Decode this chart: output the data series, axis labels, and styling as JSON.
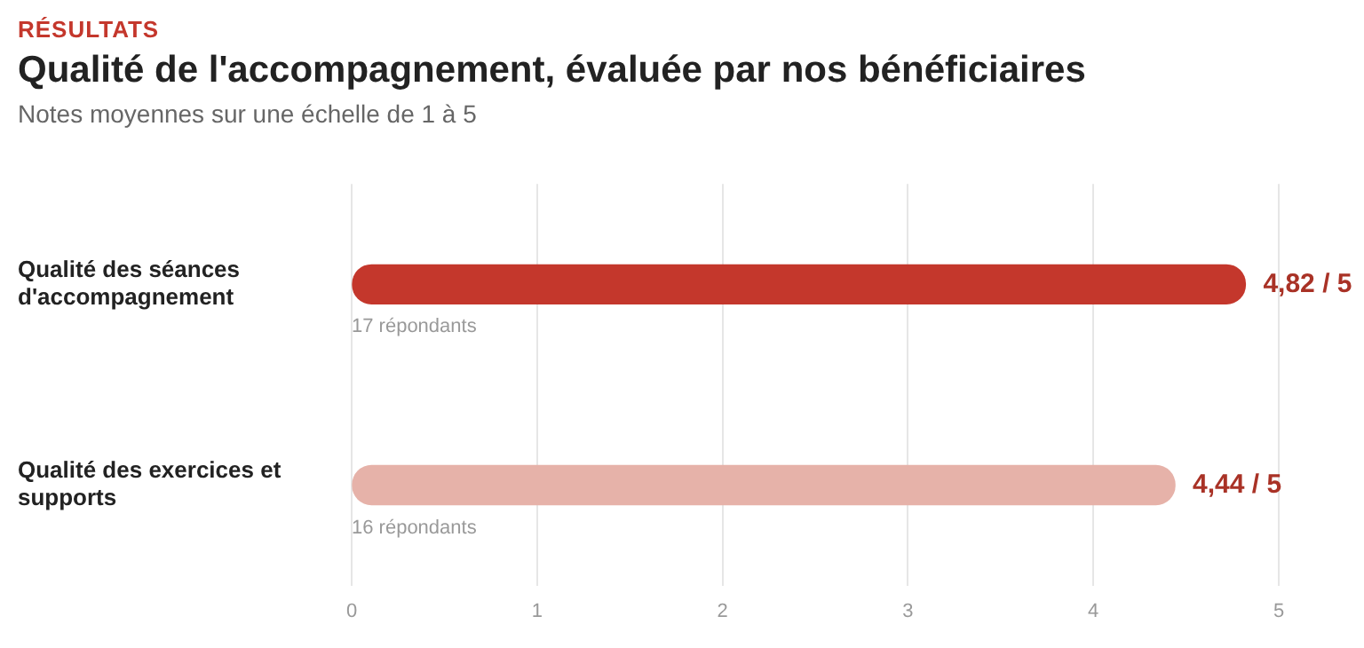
{
  "chart_data": {
    "type": "bar",
    "orientation": "horizontal",
    "title": "Qualité de l'accompagnement, évaluée par nos bénéficiaires",
    "subtitle": "Notes moyennes sur une échelle de 1 à 5",
    "annotations": [
      "RÉSULTATS",
      "17 répondants",
      "16 répondants"
    ],
    "categories": [
      "Qualité des séances d'accompagnement",
      "Qualité des exercices et supports"
    ],
    "values": [
      4.82,
      4.44
    ],
    "colors": [
      "#c4372c",
      "#e6b2a9"
    ],
    "value_labels": [
      "4,82 / 5",
      "4,44 / 5"
    ],
    "xlim": [
      0,
      5
    ],
    "xticks": [
      0,
      1,
      2,
      3,
      4,
      5
    ],
    "grid": "x",
    "legend": false
  }
}
